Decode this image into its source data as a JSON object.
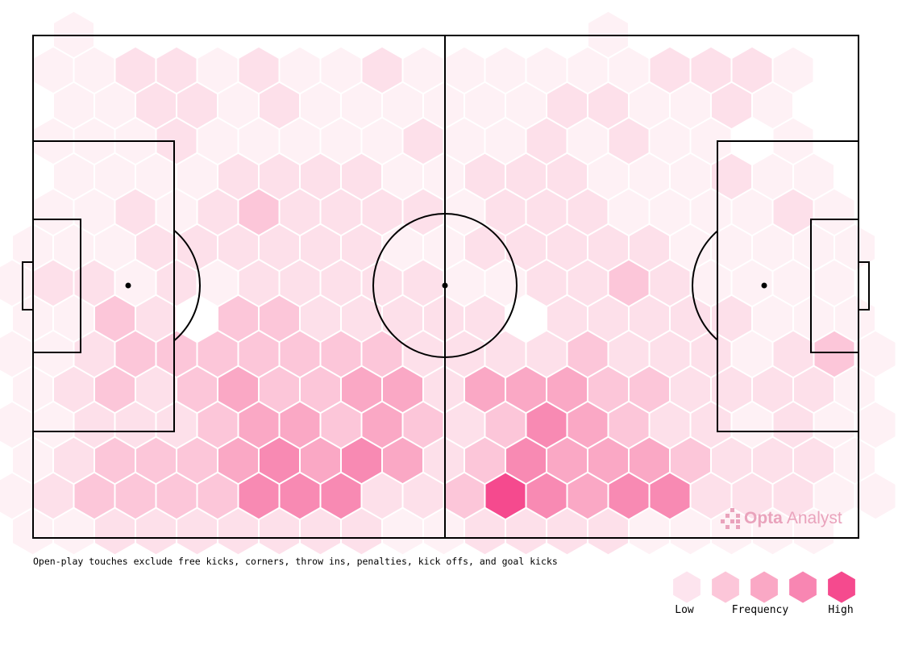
{
  "chart_data": {
    "type": "hexbin",
    "note": "Open-play touches exclude free kicks, corners, throw ins, penalties, kick offs, and goal kicks",
    "logo": {
      "brand": "Opta",
      "product": "Analyst"
    },
    "legend": {
      "low": "Low",
      "title": "Frequency",
      "high": "High",
      "colors": [
        "#fde4ee",
        "#fcc6d9",
        "#faa8c5",
        "#f886b2",
        "#f54a8e"
      ]
    },
    "colors": [
      "#ffffff",
      "#fef1f5",
      "#fde0ea",
      "#fcc6d9",
      "#faa8c5",
      "#f88ab3",
      "#f54a8e"
    ],
    "rows": [
      [
        0,
        1,
        0,
        0,
        0,
        0,
        0,
        0,
        0,
        0,
        0,
        0,
        0,
        0,
        1,
        0,
        0,
        0,
        0,
        0,
        0
      ],
      [
        0,
        1,
        1,
        2,
        2,
        1,
        2,
        1,
        1,
        2,
        1,
        1,
        1,
        1,
        1,
        1,
        2,
        2,
        2,
        1,
        0,
        0
      ],
      [
        0,
        1,
        1,
        2,
        2,
        1,
        2,
        1,
        1,
        1,
        1,
        1,
        1,
        2,
        2,
        1,
        1,
        2,
        1,
        0,
        0
      ],
      [
        0,
        1,
        1,
        1,
        2,
        1,
        1,
        1,
        1,
        1,
        2,
        1,
        1,
        2,
        1,
        2,
        1,
        1,
        0,
        1,
        0,
        0
      ],
      [
        0,
        1,
        1,
        1,
        1,
        2,
        2,
        2,
        2,
        1,
        1,
        2,
        2,
        2,
        1,
        1,
        1,
        2,
        1,
        1,
        0
      ],
      [
        0,
        1,
        1,
        2,
        1,
        2,
        3,
        2,
        2,
        2,
        2,
        1,
        2,
        2,
        2,
        1,
        1,
        1,
        1,
        2,
        1,
        0
      ],
      [
        1,
        1,
        1,
        2,
        2,
        2,
        2,
        2,
        2,
        1,
        1,
        2,
        2,
        2,
        2,
        2,
        1,
        1,
        1,
        1,
        1
      ],
      [
        1,
        2,
        2,
        1,
        2,
        1,
        2,
        2,
        2,
        2,
        2,
        1,
        1,
        2,
        2,
        3,
        2,
        1,
        1,
        1,
        1,
        0
      ],
      [
        1,
        1,
        3,
        2,
        0,
        3,
        3,
        2,
        2,
        2,
        2,
        2,
        0,
        2,
        2,
        2,
        2,
        2,
        1,
        1,
        1
      ],
      [
        1,
        1,
        2,
        3,
        3,
        3,
        3,
        3,
        3,
        3,
        2,
        2,
        2,
        2,
        3,
        2,
        2,
        2,
        1,
        2,
        3,
        1
      ],
      [
        1,
        2,
        3,
        2,
        3,
        4,
        3,
        3,
        4,
        4,
        2,
        4,
        4,
        4,
        3,
        3,
        2,
        2,
        2,
        2,
        1
      ],
      [
        1,
        1,
        2,
        2,
        2,
        3,
        4,
        4,
        3,
        4,
        3,
        2,
        3,
        5,
        4,
        3,
        2,
        2,
        1,
        2,
        1,
        1
      ],
      [
        1,
        2,
        3,
        3,
        3,
        4,
        5,
        4,
        5,
        4,
        2,
        3,
        5,
        4,
        4,
        4,
        3,
        2,
        2,
        2,
        1
      ],
      [
        1,
        2,
        3,
        3,
        3,
        3,
        5,
        5,
        5,
        2,
        2,
        3,
        6,
        5,
        4,
        5,
        5,
        2,
        2,
        2,
        1,
        1
      ],
      [
        1,
        1,
        2,
        2,
        2,
        2,
        2,
        2,
        2,
        1,
        1,
        2,
        2,
        2,
        2,
        1,
        1,
        1,
        1,
        1,
        0
      ]
    ]
  }
}
